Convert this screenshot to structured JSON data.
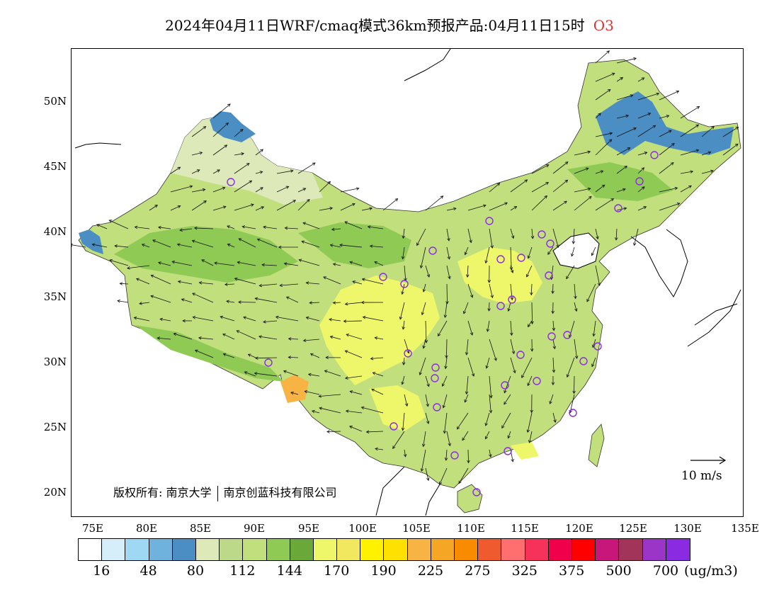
{
  "title": {
    "text": "2024年04月11日WRF/cmaq模式36km预报产品:04月11日15时",
    "species": "O3",
    "species_color": "#e03030"
  },
  "axes": {
    "lat_labels": [
      "50N",
      "45N",
      "40N",
      "35N",
      "30N",
      "25N",
      "20N"
    ],
    "lon_labels": [
      "75E",
      "80E",
      "85E",
      "90E",
      "95E",
      "100E",
      "105E",
      "110E",
      "115E",
      "120E",
      "125E",
      "130E",
      "135E"
    ]
  },
  "legend": {
    "colors": [
      "#ffffff",
      "#d6eefa",
      "#9fd8f2",
      "#6fb2de",
      "#4a8ec4",
      "#dde9b8",
      "#bcd98a",
      "#c2df7e",
      "#8fca55",
      "#6aa83a",
      "#eef76a",
      "#f2e860",
      "#fff200",
      "#ffe100",
      "#f7b445",
      "#f5a625",
      "#f98b00",
      "#ef5a2e",
      "#ff6f6f",
      "#f6325a",
      "#f0004a",
      "#ff0000",
      "#c8177a",
      "#a2345a",
      "#9b35c8",
      "#8a2be2"
    ],
    "ticks": [
      "16",
      "48",
      "80",
      "112",
      "144",
      "170",
      "190",
      "225",
      "275",
      "325",
      "375",
      "500",
      "700"
    ],
    "unit": "(ug/m3)"
  },
  "wind_reference": {
    "label": "10 m/s"
  },
  "copyright": {
    "prefix": "版权所有:",
    "org1": "南京大学",
    "org2": "南京创蓝科技有限公司"
  },
  "map_colors": {
    "base_green": "#c2df7e",
    "mid_green": "#8fca55",
    "dark_green": "#6aa83a",
    "pale_green": "#dde9b8",
    "yellow": "#eef76a",
    "orange": "#f7b445",
    "blue": "#4a8ec4",
    "station_circle": "#8a2be2"
  }
}
